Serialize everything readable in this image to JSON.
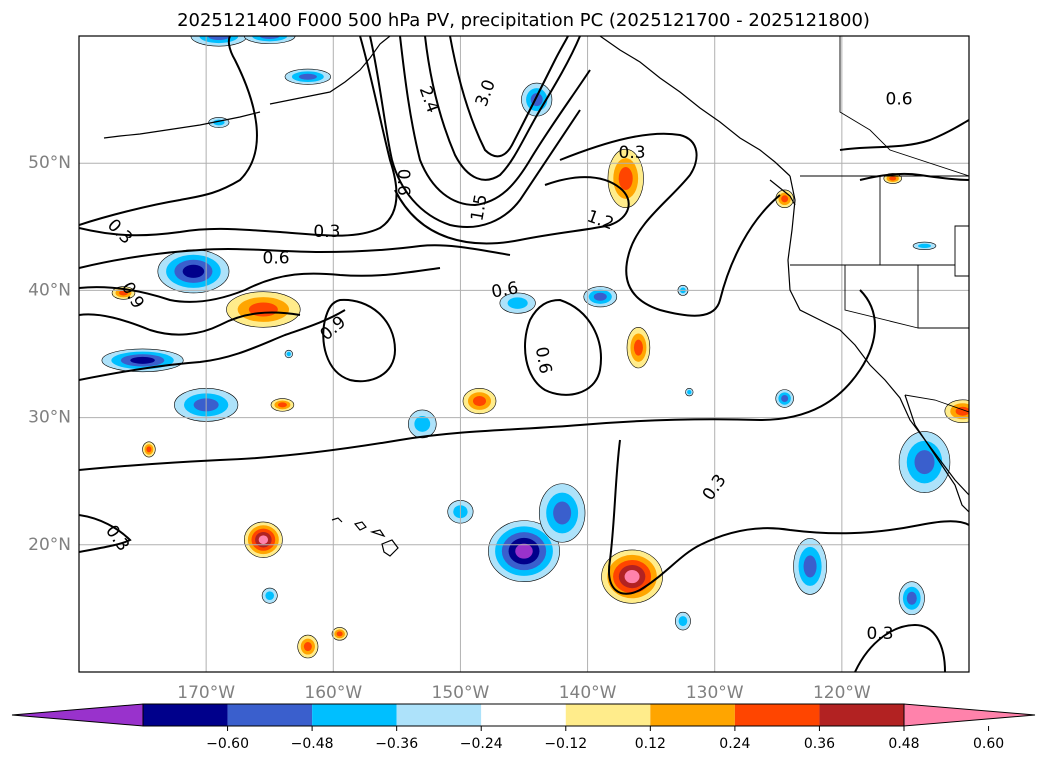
{
  "title": "2025121400 F000 500 hPa PV, precipitation PC (2025121700 - 2025121800)",
  "lat_labels": [
    {
      "label": "50°N",
      "lat": 50
    },
    {
      "label": "40°N",
      "lat": 40
    },
    {
      "label": "30°N",
      "lat": 30
    },
    {
      "label": "20°N",
      "lat": 20
    }
  ],
  "lon_labels": [
    {
      "label": "170°W",
      "lon": -170
    },
    {
      "label": "160°W",
      "lon": -160
    },
    {
      "label": "150°W",
      "lon": -150
    },
    {
      "label": "140°W",
      "lon": -140
    },
    {
      "label": "130°W",
      "lon": -130
    },
    {
      "label": "120°W",
      "lon": -120
    }
  ],
  "extent": {
    "lon_min": -180,
    "lon_max": -110,
    "lat_min": 10,
    "lat_max": 60
  },
  "colorbar": {
    "extend": "both",
    "colors": [
      "#9932CC",
      "#00008B",
      "#3A5FCD",
      "#00BFFF",
      "#ADE2FA",
      "#FFFFFF",
      "#FFEC8B",
      "#FFA500",
      "#FF4500",
      "#B22222",
      "#FF82AB"
    ],
    "tick_labels": [
      "−0.60",
      "−0.48",
      "−0.36",
      "−0.24",
      "−0.12",
      "0.12",
      "0.24",
      "0.36",
      "0.48",
      "0.60"
    ]
  },
  "contour_labels": [
    {
      "text": "0.3",
      "lon": -176.8,
      "lat": 44.6,
      "rot": 45
    },
    {
      "text": "0.6",
      "lon": -164.5,
      "lat": 42.5,
      "rot": 0
    },
    {
      "text": "0.9",
      "lon": -175.8,
      "lat": 39.6,
      "rot": 60
    },
    {
      "text": "0.3",
      "lon": -160.5,
      "lat": 44.6,
      "rot": 0
    },
    {
      "text": "0.9",
      "lon": -160.0,
      "lat": 37.0,
      "rot": -40
    },
    {
      "text": "0.6",
      "lon": -146.5,
      "lat": 40.0,
      "rot": -10
    },
    {
      "text": "0.6",
      "lon": -154.5,
      "lat": 48.5,
      "rot": 90
    },
    {
      "text": "1.5",
      "lon": -148.5,
      "lat": 46.5,
      "rot": -80
    },
    {
      "text": "2.4",
      "lon": -152.5,
      "lat": 55.0,
      "rot": 70
    },
    {
      "text": "3.0",
      "lon": -148.0,
      "lat": 55.5,
      "rot": -70
    },
    {
      "text": "1.2",
      "lon": -139.0,
      "lat": 45.5,
      "rot": 20
    },
    {
      "text": "0.3",
      "lon": -136.5,
      "lat": 50.8,
      "rot": 0
    },
    {
      "text": "0.6",
      "lon": -143.5,
      "lat": 34.5,
      "rot": 80
    },
    {
      "text": "0.6",
      "lon": -115.5,
      "lat": 55.0,
      "rot": 0
    },
    {
      "text": "0.3",
      "lon": -130.0,
      "lat": 24.5,
      "rot": -55
    },
    {
      "text": "0.3",
      "lon": -117.0,
      "lat": 13.0,
      "rot": 0
    },
    {
      "text": "0.3",
      "lon": -177.0,
      "lat": 20.5,
      "rot": 55
    }
  ],
  "precip_blobs": [
    {
      "lon": -171.0,
      "lat": 41.5,
      "rx": 2.8,
      "ry": 1.7,
      "v": -0.55
    },
    {
      "lon": -175.0,
      "lat": 34.5,
      "rx": 3.2,
      "ry": 0.9,
      "v": -0.5
    },
    {
      "lon": -170.0,
      "lat": 31.0,
      "rx": 2.5,
      "ry": 1.3,
      "v": -0.4
    },
    {
      "lon": -145.0,
      "lat": 19.5,
      "rx": 2.8,
      "ry": 2.4,
      "v": -0.62
    },
    {
      "lon": -142.0,
      "lat": 22.5,
      "rx": 1.8,
      "ry": 2.3,
      "v": -0.42
    },
    {
      "lon": -136.5,
      "lat": 17.5,
      "rx": 2.4,
      "ry": 2.1,
      "v": 0.62
    },
    {
      "lon": -165.5,
      "lat": 38.5,
      "rx": 2.9,
      "ry": 1.4,
      "v": 0.42
    },
    {
      "lon": -137.0,
      "lat": 48.8,
      "rx": 1.4,
      "ry": 2.3,
      "v": 0.4
    },
    {
      "lon": -165.5,
      "lat": 20.4,
      "rx": 1.5,
      "ry": 1.4,
      "v": 0.62
    },
    {
      "lon": -113.5,
      "lat": 26.5,
      "rx": 2.0,
      "ry": 2.4,
      "v": -0.45
    },
    {
      "lon": -122.5,
      "lat": 18.3,
      "rx": 1.3,
      "ry": 2.2,
      "v": -0.45
    },
    {
      "lon": -144.0,
      "lat": 55.0,
      "rx": 1.2,
      "ry": 1.3,
      "v": -0.45
    },
    {
      "lon": -169.0,
      "lat": 60.0,
      "rx": 2.2,
      "ry": 0.8,
      "v": -0.42
    },
    {
      "lon": -132.5,
      "lat": 40.0,
      "rx": 0.4,
      "ry": 0.4,
      "v": -0.3
    },
    {
      "lon": -136.0,
      "lat": 35.5,
      "rx": 0.9,
      "ry": 1.6,
      "v": 0.42
    },
    {
      "lon": -148.5,
      "lat": 31.3,
      "rx": 1.3,
      "ry": 1.0,
      "v": 0.38
    },
    {
      "lon": -153.0,
      "lat": 29.5,
      "rx": 1.1,
      "ry": 1.1,
      "v": -0.35
    },
    {
      "lon": -145.5,
      "lat": 39.0,
      "rx": 1.4,
      "ry": 0.8,
      "v": -0.3
    },
    {
      "lon": -139.0,
      "lat": 39.5,
      "rx": 1.3,
      "ry": 0.8,
      "v": -0.36
    },
    {
      "lon": -165.0,
      "lat": 60.0,
      "rx": 2.0,
      "ry": 0.6,
      "v": -0.38
    },
    {
      "lon": -162.0,
      "lat": 56.8,
      "rx": 1.8,
      "ry": 0.6,
      "v": -0.36
    },
    {
      "lon": -110.5,
      "lat": 30.5,
      "rx": 1.4,
      "ry": 0.9,
      "v": 0.42
    },
    {
      "lon": -176.5,
      "lat": 39.8,
      "rx": 0.9,
      "ry": 0.5,
      "v": 0.42
    },
    {
      "lon": -124.5,
      "lat": 47.2,
      "rx": 0.7,
      "ry": 0.7,
      "v": 0.4
    },
    {
      "lon": -150.0,
      "lat": 22.6,
      "rx": 1.0,
      "ry": 0.9,
      "v": -0.3
    },
    {
      "lon": -164.0,
      "lat": 31.0,
      "rx": 0.9,
      "ry": 0.5,
      "v": 0.36
    },
    {
      "lon": -165.0,
      "lat": 16.0,
      "rx": 0.6,
      "ry": 0.6,
      "v": -0.3
    },
    {
      "lon": -162.0,
      "lat": 12.0,
      "rx": 0.8,
      "ry": 0.9,
      "v": 0.42
    },
    {
      "lon": -159.5,
      "lat": 13.0,
      "rx": 0.6,
      "ry": 0.5,
      "v": 0.36
    },
    {
      "lon": -114.5,
      "lat": 15.8,
      "rx": 1.0,
      "ry": 1.3,
      "v": -0.36
    },
    {
      "lon": -124.5,
      "lat": 31.5,
      "rx": 0.7,
      "ry": 0.7,
      "v": -0.36
    },
    {
      "lon": -132.5,
      "lat": 14.0,
      "rx": 0.6,
      "ry": 0.7,
      "v": -0.3
    },
    {
      "lon": -174.5,
      "lat": 27.5,
      "rx": 0.5,
      "ry": 0.6,
      "v": 0.36
    },
    {
      "lon": -169.0,
      "lat": 53.2,
      "rx": 0.8,
      "ry": 0.4,
      "v": -0.3
    },
    {
      "lon": -116.0,
      "lat": 48.8,
      "rx": 0.7,
      "ry": 0.4,
      "v": 0.42
    },
    {
      "lon": -163.5,
      "lat": 35.0,
      "rx": 0.3,
      "ry": 0.3,
      "v": -0.3
    },
    {
      "lon": -132.0,
      "lat": 32.0,
      "rx": 0.3,
      "ry": 0.3,
      "v": -0.3
    },
    {
      "lon": -113.5,
      "lat": 43.5,
      "rx": 0.9,
      "ry": 0.3,
      "v": -0.24
    }
  ]
}
